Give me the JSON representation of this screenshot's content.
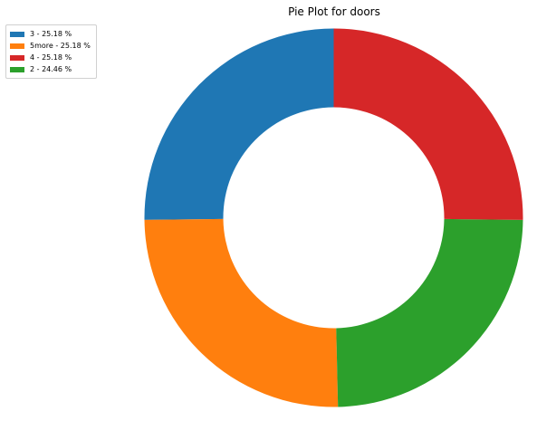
{
  "chart_data": {
    "type": "pie",
    "donut": true,
    "title": "Pie Plot for doors",
    "categories": [
      "3",
      "5more",
      "4",
      "2"
    ],
    "values": [
      25.18,
      25.18,
      25.18,
      24.46
    ],
    "unit": "%",
    "colors": [
      "#1f77b4",
      "#ff7f0e",
      "#d62728",
      "#2ca02c"
    ],
    "start_angle": "top",
    "direction": "counter-clockwise",
    "legend": {
      "position": "top-left",
      "entries": [
        "3 - 25.18 %",
        "5more - 25.18 %",
        "4 - 25.18 %",
        "2 - 24.46 %"
      ]
    },
    "slice_order": [
      "3",
      "5more",
      "2",
      "4"
    ]
  }
}
